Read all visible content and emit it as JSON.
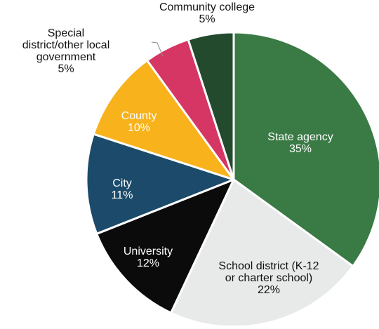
{
  "chart_data": {
    "type": "pie",
    "slices": [
      {
        "label": [
          "State agency"
        ],
        "value": 35,
        "value_label": "35%",
        "color": "#3a7a45",
        "text_color": "#ffffff"
      },
      {
        "label": [
          "School district (K-12",
          "or charter school)"
        ],
        "value": 22,
        "value_label": "22%",
        "color": "#e8eae9",
        "text_color": "#111111"
      },
      {
        "label": [
          "University"
        ],
        "value": 12,
        "value_label": "12%",
        "color": "#0b0b0b",
        "text_color": "#ffffff"
      },
      {
        "label": [
          "City"
        ],
        "value": 11,
        "value_label": "11%",
        "color": "#1b4a6a",
        "text_color": "#ffffff"
      },
      {
        "label": [
          "County"
        ],
        "value": 10,
        "value_label": "10%",
        "color": "#f7b21c",
        "text_color": "#ffffff"
      },
      {
        "label": [
          "Special",
          "district/other local",
          "government"
        ],
        "value": 5,
        "value_label": "5%",
        "color": "#d63663",
        "text_color": "#111111",
        "outside": true
      },
      {
        "label": [
          "Community college"
        ],
        "value": 5,
        "value_label": "5%",
        "color": "#234a2d",
        "text_color": "#111111",
        "outside": true
      }
    ]
  }
}
